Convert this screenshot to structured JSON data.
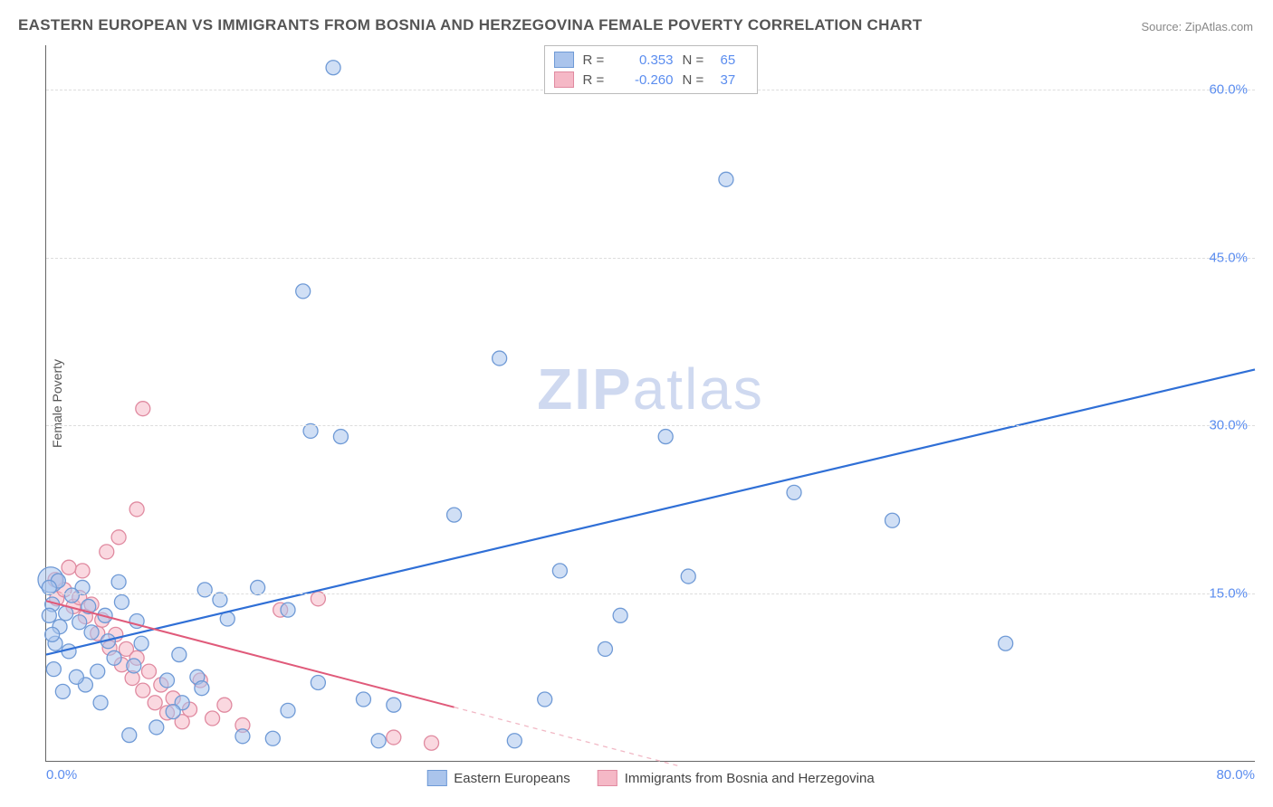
{
  "title": "EASTERN EUROPEAN VS IMMIGRANTS FROM BOSNIA AND HERZEGOVINA FEMALE POVERTY CORRELATION CHART",
  "source": "Source: ZipAtlas.com",
  "ylabel": "Female Poverty",
  "watermark_a": "ZIP",
  "watermark_b": "atlas",
  "chart": {
    "type": "scatter",
    "xlim": [
      0,
      80
    ],
    "ylim": [
      0,
      64
    ],
    "x_ticks": [
      {
        "v": 0,
        "label": "0.0%"
      },
      {
        "v": 80,
        "label": "80.0%"
      }
    ],
    "y_ticks": [
      {
        "v": 15,
        "label": "15.0%"
      },
      {
        "v": 30,
        "label": "30.0%"
      },
      {
        "v": 45,
        "label": "45.0%"
      },
      {
        "v": 60,
        "label": "60.0%"
      }
    ],
    "grid_color": "#dddddd",
    "background_color": "#ffffff",
    "series": [
      {
        "name": "Eastern Europeans",
        "fill": "#aac4ec",
        "stroke": "#6f9ad6",
        "fill_opacity": 0.55,
        "marker_r": 8,
        "trend": {
          "x1": 0,
          "y1": 9.5,
          "x2": 80,
          "y2": 35,
          "color": "#2f6fd6",
          "width": 2.2,
          "dash": null
        },
        "legend": {
          "R": "0.353",
          "N": "65"
        },
        "points": [
          [
            19,
            62
          ],
          [
            45,
            52
          ],
          [
            30,
            36
          ],
          [
            17,
            42
          ],
          [
            17.5,
            29.5
          ],
          [
            19.5,
            29
          ],
          [
            27,
            22
          ],
          [
            49.5,
            24
          ],
          [
            56,
            21.5
          ],
          [
            34,
            17
          ],
          [
            38,
            13
          ],
          [
            42.5,
            16.5
          ],
          [
            37,
            10
          ],
          [
            63.5,
            10.5
          ],
          [
            41,
            29
          ],
          [
            33,
            5.5
          ],
          [
            31,
            1.8
          ],
          [
            21,
            5.5
          ],
          [
            22,
            1.8
          ],
          [
            23,
            5
          ],
          [
            16,
            4.5
          ],
          [
            15,
            2
          ],
          [
            13,
            2.2
          ],
          [
            12,
            12.7
          ],
          [
            11.5,
            14.4
          ],
          [
            14,
            15.5
          ],
          [
            16,
            13.5
          ],
          [
            10.5,
            15.3
          ],
          [
            18,
            7
          ],
          [
            8.8,
            9.5
          ],
          [
            10,
            7.5
          ],
          [
            10.3,
            6.5
          ],
          [
            9,
            5.2
          ],
          [
            7.3,
            3
          ],
          [
            8,
            7.2
          ],
          [
            8.4,
            4.4
          ],
          [
            5.5,
            2.3
          ],
          [
            6.3,
            10.5
          ],
          [
            6,
            12.5
          ],
          [
            5.8,
            8.5
          ],
          [
            5,
            14.2
          ],
          [
            4.8,
            16
          ],
          [
            4.5,
            9.2
          ],
          [
            4.1,
            10.7
          ],
          [
            3.9,
            13
          ],
          [
            3.6,
            5.2
          ],
          [
            3.4,
            8
          ],
          [
            3,
            11.5
          ],
          [
            2.8,
            13.8
          ],
          [
            2.6,
            6.8
          ],
          [
            2.4,
            15.5
          ],
          [
            2.2,
            12.4
          ],
          [
            2,
            7.5
          ],
          [
            1.7,
            14.8
          ],
          [
            1.5,
            9.8
          ],
          [
            1.3,
            13.2
          ],
          [
            1.1,
            6.2
          ],
          [
            0.9,
            12
          ],
          [
            0.8,
            16.1
          ],
          [
            0.6,
            10.5
          ],
          [
            0.5,
            8.2
          ],
          [
            0.4,
            14
          ],
          [
            0.4,
            11.3
          ],
          [
            0.2,
            13
          ],
          [
            0.2,
            15.5
          ]
        ],
        "big_points": [
          [
            0.3,
            16.2,
            14
          ]
        ]
      },
      {
        "name": "Immigrants from Bosnia and Herzegovina",
        "fill": "#f5b8c6",
        "stroke": "#e08aa0",
        "fill_opacity": 0.55,
        "marker_r": 8,
        "trend": {
          "x1": 0,
          "y1": 14.3,
          "x2": 27,
          "y2": 4.8,
          "color": "#e05a7a",
          "width": 2,
          "dash": null
        },
        "trend_ext": {
          "x1": 27,
          "y1": 4.8,
          "x2": 42,
          "y2": -0.5,
          "color": "#f1b8c5",
          "width": 1.3,
          "dash": "5 5"
        },
        "legend": {
          "R": "-0.260",
          "N": "37"
        },
        "points": [
          [
            6.4,
            31.5
          ],
          [
            4.8,
            20
          ],
          [
            6,
            22.5
          ],
          [
            4,
            18.7
          ],
          [
            2.4,
            17
          ],
          [
            1.5,
            17.3
          ],
          [
            0.6,
            16.2
          ],
          [
            0.7,
            14.5
          ],
          [
            1.2,
            15.3
          ],
          [
            1.8,
            13.8
          ],
          [
            2.2,
            14.6
          ],
          [
            2.6,
            12.9
          ],
          [
            3,
            14
          ],
          [
            3.4,
            11.4
          ],
          [
            3.7,
            12.6
          ],
          [
            4.2,
            10.1
          ],
          [
            4.6,
            11.3
          ],
          [
            5,
            8.6
          ],
          [
            5.3,
            10
          ],
          [
            5.7,
            7.4
          ],
          [
            6,
            9.2
          ],
          [
            6.4,
            6.3
          ],
          [
            6.8,
            8
          ],
          [
            7.2,
            5.2
          ],
          [
            7.6,
            6.8
          ],
          [
            8,
            4.3
          ],
          [
            8.4,
            5.6
          ],
          [
            9,
            3.5
          ],
          [
            9.5,
            4.6
          ],
          [
            10.2,
            7.2
          ],
          [
            11,
            3.8
          ],
          [
            11.8,
            5
          ],
          [
            13,
            3.2
          ],
          [
            15.5,
            13.5
          ],
          [
            18,
            14.5
          ],
          [
            23,
            2.1
          ],
          [
            25.5,
            1.6
          ]
        ],
        "big_points": []
      }
    ]
  }
}
